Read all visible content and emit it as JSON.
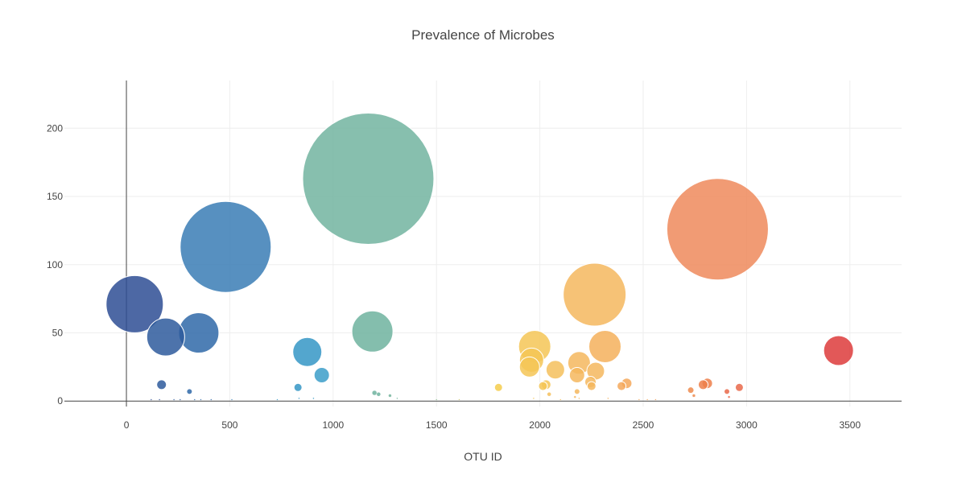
{
  "chart_data": {
    "type": "scatter",
    "variant": "bubble",
    "title": "Prevalence of Microbes",
    "xlabel": "OTU ID",
    "ylabel": "",
    "xlim": [
      -300,
      3750
    ],
    "ylim": [
      -4,
      235
    ],
    "xticks": [
      0,
      500,
      1000,
      1500,
      2000,
      2500,
      3000,
      3500
    ],
    "yticks": [
      0,
      50,
      100,
      150,
      200
    ],
    "grid": true,
    "legend": "none",
    "colorscale": "Earth",
    "size_encodes": "y",
    "points": [
      {
        "x": 40,
        "y": 71,
        "color": "#2e4d94"
      },
      {
        "x": 190,
        "y": 47,
        "color": "#2e5a9c"
      },
      {
        "x": 350,
        "y": 50,
        "color": "#2f68a8"
      },
      {
        "x": 480,
        "y": 113,
        "color": "#3a7db5"
      },
      {
        "x": 170,
        "y": 12,
        "color": "#2e5a9c"
      },
      {
        "x": 305,
        "y": 7,
        "color": "#2f68a8"
      },
      {
        "x": 875,
        "y": 36,
        "color": "#3596c6"
      },
      {
        "x": 945,
        "y": 19,
        "color": "#3b9ec9"
      },
      {
        "x": 830,
        "y": 10,
        "color": "#3596c6"
      },
      {
        "x": 1170,
        "y": 163,
        "color": "#72b4a0"
      },
      {
        "x": 1190,
        "y": 51,
        "color": "#6fb39f"
      },
      {
        "x": 1200,
        "y": 6,
        "color": "#6fb39f"
      },
      {
        "x": 1220,
        "y": 5,
        "color": "#6fb39f"
      },
      {
        "x": 1275,
        "y": 4,
        "color": "#74b49c"
      },
      {
        "x": 1800,
        "y": 10,
        "color": "#f4cc4c"
      },
      {
        "x": 1975,
        "y": 40,
        "color": "#f4c556"
      },
      {
        "x": 1960,
        "y": 30,
        "color": "#f4c556"
      },
      {
        "x": 1950,
        "y": 25,
        "color": "#f4c556"
      },
      {
        "x": 2030,
        "y": 12,
        "color": "#f4c556"
      },
      {
        "x": 2015,
        "y": 11,
        "color": "#f4c556"
      },
      {
        "x": 2075,
        "y": 23,
        "color": "#f4bf5c"
      },
      {
        "x": 2045,
        "y": 5,
        "color": "#f4bf5c"
      },
      {
        "x": 2190,
        "y": 28,
        "color": "#f4b75e"
      },
      {
        "x": 2180,
        "y": 19,
        "color": "#f4b75e"
      },
      {
        "x": 2180,
        "y": 7,
        "color": "#f4b75e"
      },
      {
        "x": 2265,
        "y": 78,
        "color": "#f4b75e"
      },
      {
        "x": 2270,
        "y": 22,
        "color": "#f4b75e"
      },
      {
        "x": 2245,
        "y": 14,
        "color": "#f4b75e"
      },
      {
        "x": 2250,
        "y": 11,
        "color": "#f4b75e"
      },
      {
        "x": 2315,
        "y": 40,
        "color": "#f4b05c"
      },
      {
        "x": 2395,
        "y": 11,
        "color": "#f4a85a"
      },
      {
        "x": 2420,
        "y": 13,
        "color": "#f4a85a"
      },
      {
        "x": 2730,
        "y": 8,
        "color": "#ed8a4c"
      },
      {
        "x": 2745,
        "y": 4,
        "color": "#ed8a4c"
      },
      {
        "x": 2790,
        "y": 12,
        "color": "#ed7f4a"
      },
      {
        "x": 2810,
        "y": 13,
        "color": "#ed7f4a"
      },
      {
        "x": 2860,
        "y": 126,
        "color": "#ef8a5c"
      },
      {
        "x": 2905,
        "y": 7,
        "color": "#e9694a"
      },
      {
        "x": 2965,
        "y": 10,
        "color": "#e9694a"
      },
      {
        "x": 2915,
        "y": 3,
        "color": "#e9694a"
      },
      {
        "x": 3445,
        "y": 37,
        "color": "#dd3b3b"
      },
      {
        "x": 120,
        "y": 1,
        "color": "#2e4d94"
      },
      {
        "x": 160,
        "y": 1,
        "color": "#2e4d94"
      },
      {
        "x": 230,
        "y": 1,
        "color": "#2e5a9c"
      },
      {
        "x": 260,
        "y": 1,
        "color": "#2e5a9c"
      },
      {
        "x": 330,
        "y": 1,
        "color": "#2f68a8"
      },
      {
        "x": 360,
        "y": 1,
        "color": "#2f68a8"
      },
      {
        "x": 410,
        "y": 1,
        "color": "#2f68a8"
      },
      {
        "x": 510,
        "y": 1,
        "color": "#3a7db5"
      },
      {
        "x": 730,
        "y": 1,
        "color": "#3596c6"
      },
      {
        "x": 835,
        "y": 2,
        "color": "#3596c6"
      },
      {
        "x": 905,
        "y": 2,
        "color": "#3596c6"
      },
      {
        "x": 1310,
        "y": 2,
        "color": "#74b49c"
      },
      {
        "x": 1500,
        "y": 1,
        "color": "#8ebd91"
      },
      {
        "x": 1610,
        "y": 1,
        "color": "#c9c46a"
      },
      {
        "x": 1970,
        "y": 2,
        "color": "#f4c556"
      },
      {
        "x": 2100,
        "y": 1,
        "color": "#f4bf5c"
      },
      {
        "x": 2170,
        "y": 3,
        "color": "#f4b75e"
      },
      {
        "x": 2190,
        "y": 2,
        "color": "#f4b75e"
      },
      {
        "x": 2330,
        "y": 2,
        "color": "#f4b05c"
      },
      {
        "x": 2480,
        "y": 1,
        "color": "#f4a85a"
      },
      {
        "x": 2520,
        "y": 1,
        "color": "#f4a85a"
      },
      {
        "x": 2560,
        "y": 1,
        "color": "#f09a56"
      }
    ]
  }
}
